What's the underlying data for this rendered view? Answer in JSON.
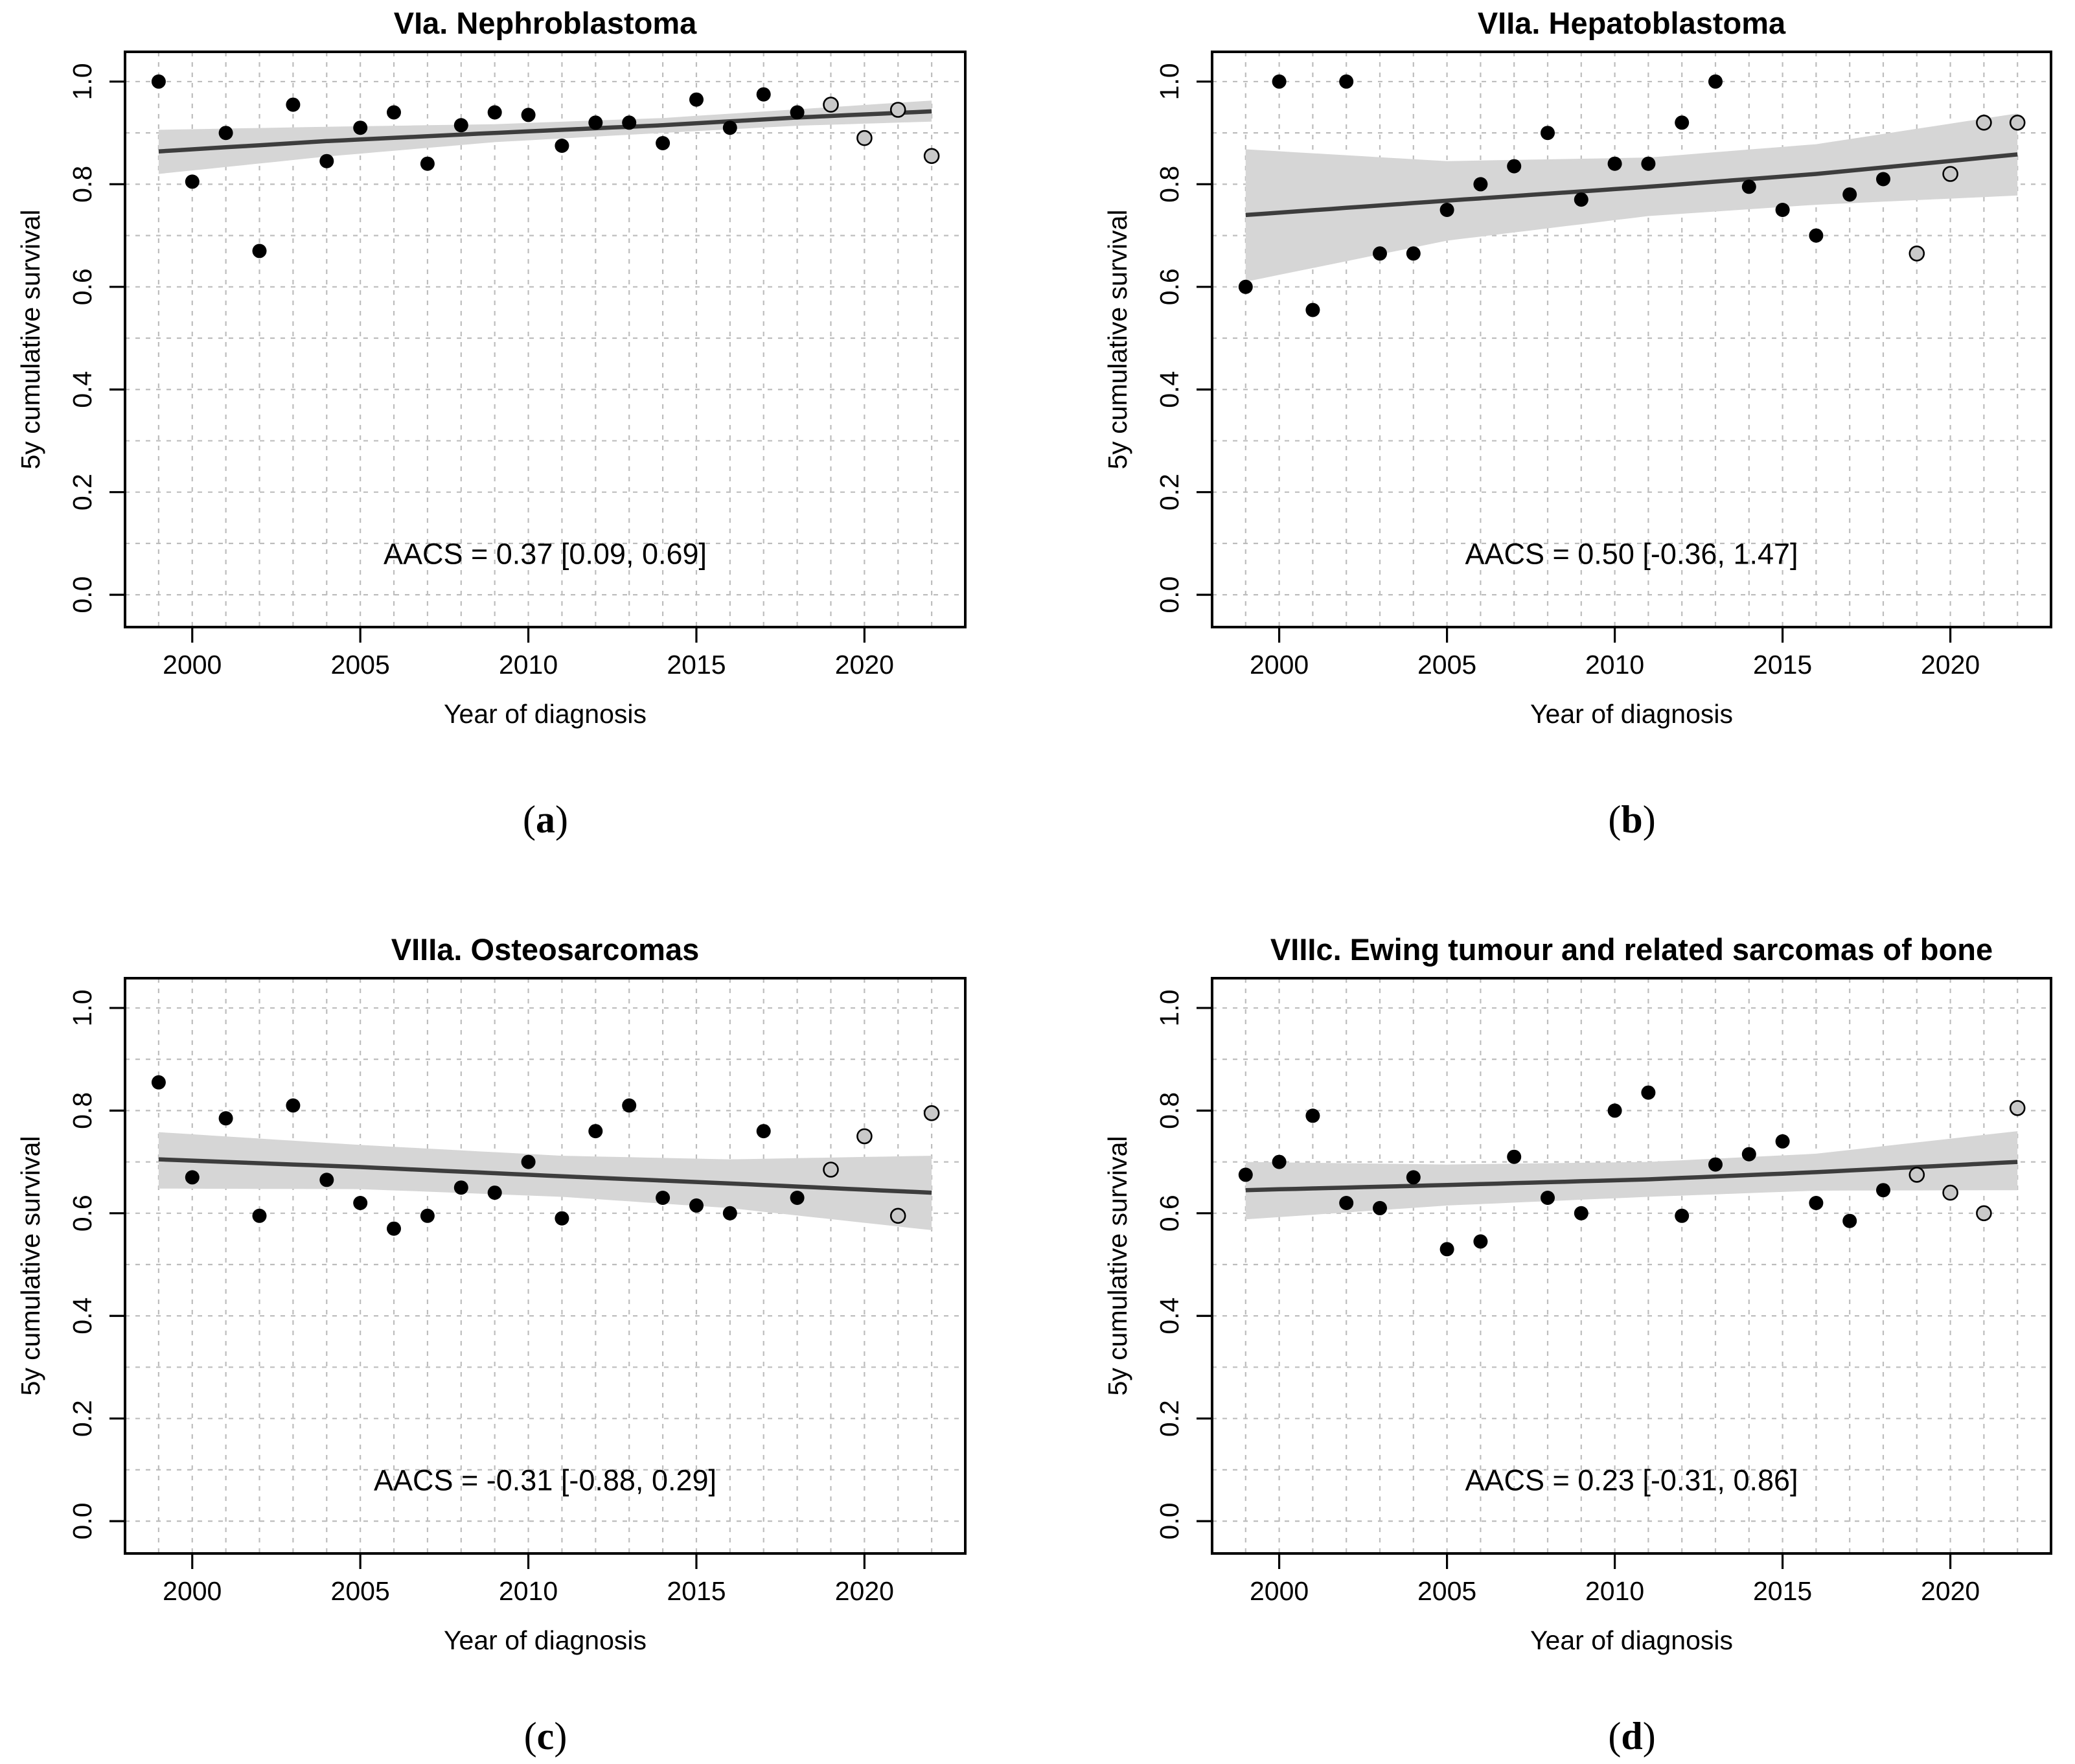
{
  "figure": {
    "caption_open": "(",
    "caption_close": ")",
    "colors": {
      "background": "#ffffff",
      "frame": "#000000",
      "grid": "#bdbdbd",
      "band": "#d6d6d6",
      "trend": "#3d3d3d",
      "point_black": "#000000",
      "point_gray_fill": "#c9c9c9",
      "point_gray_stroke": "#000000",
      "text": "#000000"
    }
  },
  "chart_data": [
    {
      "id": "a",
      "caption_letter": "a",
      "type": "scatter",
      "title": "VIa. Nephroblastoma",
      "xlabel": "Year of diagnosis",
      "ylabel": "5y cumulative survival",
      "annotation": "AACS = 0.37 [0.09, 0.69]",
      "xlim": [
        1998,
        2023
      ],
      "ylim": [
        -0.06,
        1.06
      ],
      "x_ticks": [
        2000,
        2005,
        2010,
        2015,
        2020
      ],
      "x_tick_labels": [
        "2000",
        "2005",
        "2010",
        "2015",
        "2020"
      ],
      "y_ticks": [
        0.0,
        0.2,
        0.4,
        0.6,
        0.8,
        1.0
      ],
      "y_tick_labels": [
        "0.0",
        "0.2",
        "0.4",
        "0.6",
        "0.8",
        "1.0"
      ],
      "grid": true,
      "years": [
        1999,
        2000,
        2001,
        2002,
        2003,
        2004,
        2005,
        2006,
        2007,
        2008,
        2009,
        2010,
        2011,
        2012,
        2013,
        2014,
        2015,
        2016,
        2017,
        2018,
        2019,
        2020,
        2021,
        2022
      ],
      "values": [
        1.0,
        0.805,
        0.9,
        0.67,
        0.955,
        0.845,
        0.91,
        0.94,
        0.84,
        0.915,
        0.94,
        0.935,
        0.875,
        0.92,
        0.92,
        0.88,
        0.965,
        0.91,
        0.975,
        0.94,
        0.955,
        0.89,
        0.945,
        0.855
      ],
      "projected_years": [
        2019,
        2020,
        2021,
        2022
      ],
      "trend": {
        "years": [
          1999,
          2004,
          2009,
          2014,
          2018,
          2022
        ],
        "mid": [
          0.864,
          0.884,
          0.9,
          0.915,
          0.93,
          0.942
        ],
        "hi": [
          0.906,
          0.912,
          0.917,
          0.929,
          0.946,
          0.963
        ],
        "lo": [
          0.82,
          0.854,
          0.882,
          0.9,
          0.914,
          0.922
        ]
      }
    },
    {
      "id": "b",
      "caption_letter": "b",
      "type": "scatter",
      "title": "VIIa. Hepatoblastoma",
      "xlabel": "Year of diagnosis",
      "ylabel": "5y cumulative survival",
      "annotation": "AACS = 0.50 [-0.36, 1.47]",
      "xlim": [
        1998,
        2023
      ],
      "ylim": [
        -0.06,
        1.06
      ],
      "x_ticks": [
        2000,
        2005,
        2010,
        2015,
        2020
      ],
      "x_tick_labels": [
        "2000",
        "2005",
        "2010",
        "2015",
        "2020"
      ],
      "y_ticks": [
        0.0,
        0.2,
        0.4,
        0.6,
        0.8,
        1.0
      ],
      "y_tick_labels": [
        "0.0",
        "0.2",
        "0.4",
        "0.6",
        "0.8",
        "1.0"
      ],
      "grid": true,
      "years": [
        1999,
        2000,
        2001,
        2002,
        2003,
        2004,
        2005,
        2006,
        2007,
        2008,
        2009,
        2010,
        2011,
        2012,
        2013,
        2014,
        2015,
        2016,
        2017,
        2018,
        2019,
        2020,
        2021,
        2022
      ],
      "values": [
        0.6,
        1.0,
        0.555,
        1.0,
        0.665,
        0.665,
        0.75,
        0.8,
        0.835,
        0.9,
        0.77,
        0.84,
        0.84,
        0.92,
        1.0,
        0.795,
        0.75,
        0.7,
        0.78,
        0.81,
        0.665,
        0.82,
        0.92,
        0.92
      ],
      "projected_years": [
        2019,
        2020,
        2021,
        2022
      ],
      "trend": {
        "years": [
          1999,
          2005,
          2011,
          2016,
          2022
        ],
        "mid": [
          0.74,
          0.768,
          0.795,
          0.82,
          0.858
        ],
        "hi": [
          0.868,
          0.845,
          0.852,
          0.878,
          0.938
        ],
        "lo": [
          0.61,
          0.69,
          0.738,
          0.76,
          0.778
        ]
      }
    },
    {
      "id": "c",
      "caption_letter": "c",
      "type": "scatter",
      "title": "VIIIa. Osteosarcomas",
      "xlabel": "Year of diagnosis",
      "ylabel": "5y cumulative survival",
      "annotation": "AACS = -0.31 [-0.88, 0.29]",
      "xlim": [
        1998,
        2023
      ],
      "ylim": [
        -0.06,
        1.06
      ],
      "x_ticks": [
        2000,
        2005,
        2010,
        2015,
        2020
      ],
      "x_tick_labels": [
        "2000",
        "2005",
        "2010",
        "2015",
        "2020"
      ],
      "y_ticks": [
        0.0,
        0.2,
        0.4,
        0.6,
        0.8,
        1.0
      ],
      "y_tick_labels": [
        "0.0",
        "0.2",
        "0.4",
        "0.6",
        "0.8",
        "1.0"
      ],
      "grid": true,
      "years": [
        1999,
        2000,
        2001,
        2002,
        2003,
        2004,
        2005,
        2006,
        2007,
        2008,
        2009,
        2010,
        2011,
        2012,
        2013,
        2014,
        2015,
        2016,
        2017,
        2018,
        2019,
        2020,
        2021,
        2022
      ],
      "values": [
        0.855,
        0.67,
        0.785,
        0.595,
        0.81,
        0.665,
        0.62,
        0.57,
        0.595,
        0.65,
        0.64,
        0.7,
        0.59,
        0.76,
        0.81,
        0.63,
        0.615,
        0.6,
        0.76,
        0.63,
        0.685,
        0.75,
        0.595,
        0.795
      ],
      "projected_years": [
        2019,
        2020,
        2021,
        2022
      ],
      "trend": {
        "years": [
          1999,
          2005,
          2011,
          2016,
          2022
        ],
        "mid": [
          0.705,
          0.69,
          0.672,
          0.658,
          0.64
        ],
        "hi": [
          0.758,
          0.733,
          0.712,
          0.705,
          0.712
        ],
        "lo": [
          0.648,
          0.647,
          0.632,
          0.61,
          0.567
        ]
      }
    },
    {
      "id": "d",
      "caption_letter": "d",
      "type": "scatter",
      "title": "VIIIc. Ewing tumour and related sarcomas of bone",
      "xlabel": "Year of diagnosis",
      "ylabel": "5y cumulative survival",
      "annotation": "AACS = 0.23 [-0.31, 0.86]",
      "xlim": [
        1998,
        2023
      ],
      "ylim": [
        -0.06,
        1.06
      ],
      "x_ticks": [
        2000,
        2005,
        2010,
        2015,
        2020
      ],
      "x_tick_labels": [
        "2000",
        "2005",
        "2010",
        "2015",
        "2020"
      ],
      "y_ticks": [
        0.0,
        0.2,
        0.4,
        0.6,
        0.8,
        1.0
      ],
      "y_tick_labels": [
        "0.0",
        "0.2",
        "0.4",
        "0.6",
        "0.8",
        "1.0"
      ],
      "grid": true,
      "years": [
        1999,
        2000,
        2001,
        2002,
        2003,
        2004,
        2005,
        2006,
        2007,
        2008,
        2009,
        2010,
        2011,
        2012,
        2013,
        2014,
        2015,
        2016,
        2017,
        2018,
        2019,
        2020,
        2021,
        2022
      ],
      "values": [
        0.675,
        0.7,
        0.79,
        0.62,
        0.61,
        0.67,
        0.53,
        0.545,
        0.71,
        0.63,
        0.6,
        0.8,
        0.835,
        0.595,
        0.695,
        0.715,
        0.74,
        0.62,
        0.585,
        0.645,
        0.675,
        0.64,
        0.6,
        0.805
      ],
      "projected_years": [
        2019,
        2020,
        2021,
        2022
      ],
      "trend": {
        "years": [
          1999,
          2005,
          2011,
          2016,
          2022
        ],
        "mid": [
          0.645,
          0.655,
          0.666,
          0.68,
          0.7
        ],
        "hi": [
          0.7,
          0.695,
          0.7,
          0.716,
          0.76
        ],
        "lo": [
          0.588,
          0.615,
          0.632,
          0.644,
          0.645
        ]
      }
    }
  ]
}
